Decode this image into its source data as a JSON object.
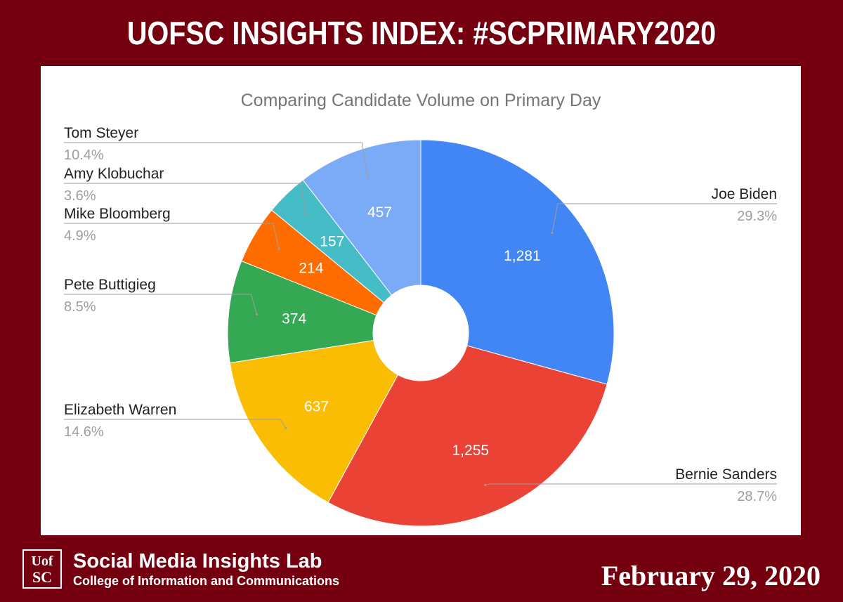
{
  "header": {
    "title": "UOFSC INSIGHTS INDEX: #SCPRIMARY2020"
  },
  "chart_data": {
    "type": "pie",
    "subtype": "donut",
    "title": "Comparing Candidate Volume on Primary Day",
    "legend": "none",
    "slices": [
      {
        "label": "Joe Biden",
        "value": 1281,
        "value_label": "1,281",
        "percent": "29.3%",
        "color": "#4285f4"
      },
      {
        "label": "Bernie Sanders",
        "value": 1255,
        "value_label": "1,255",
        "percent": "28.7%",
        "color": "#ea4335"
      },
      {
        "label": "Elizabeth Warren",
        "value": 637,
        "value_label": "637",
        "percent": "14.6%",
        "color": "#fbbc04"
      },
      {
        "label": "Pete Buttigieg",
        "value": 374,
        "value_label": "374",
        "percent": "8.5%",
        "color": "#34a853"
      },
      {
        "label": "Mike Bloomberg",
        "value": 214,
        "value_label": "214",
        "percent": "4.9%",
        "color": "#ff6d01"
      },
      {
        "label": "Amy Klobuchar",
        "value": 157,
        "value_label": "157",
        "percent": "3.6%",
        "color": "#46bdc6"
      },
      {
        "label": "Tom Steyer",
        "value": 457,
        "value_label": "457",
        "percent": "10.4%",
        "color": "#7baaf7"
      }
    ]
  },
  "footer": {
    "logo_line1": "Uof",
    "logo_line2": "SC",
    "lab_name": "Social Media Insights Lab",
    "college": "College of Information and Communications",
    "date": "February 29, 2020"
  },
  "colors": {
    "background": "#74000f",
    "card": "#ffffff",
    "title_gray": "#757575",
    "label_dark": "#222222",
    "percent_gray": "#9e9e9e"
  }
}
